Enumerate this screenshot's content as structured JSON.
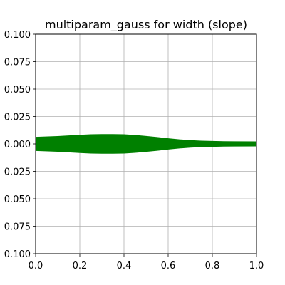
{
  "chart_data": {
    "type": "line",
    "title": "multiparam_gauss for width (slope)",
    "xlabel": "",
    "ylabel": "",
    "xlim": [
      0.0,
      1.0
    ],
    "ylim": [
      -0.1,
      0.1
    ],
    "xticks": [
      "0.0",
      "0.2",
      "0.4",
      "0.6",
      "0.8",
      "1.0"
    ],
    "yticks": [
      "0.100",
      "0.075",
      "0.050",
      "0.025",
      "0.000",
      "0.025",
      "0.050",
      "0.075",
      "0.100"
    ],
    "ytick_values": [
      0.1,
      0.075,
      0.05,
      0.025,
      0.0,
      -0.025,
      -0.05,
      -0.075,
      -0.1
    ],
    "grid": true,
    "legend": "none",
    "series_color": "#008000",
    "x": [
      0.0,
      0.1,
      0.2,
      0.25,
      0.3,
      0.35,
      0.4,
      0.45,
      0.5,
      0.55,
      0.6,
      0.65,
      0.7,
      0.75,
      0.8,
      0.85,
      0.9,
      1.0
    ],
    "series": [
      {
        "values": [
          0.0045,
          0.0052,
          0.0063,
          0.0068,
          0.007,
          0.007,
          0.0068,
          0.0062,
          0.0053,
          0.0043,
          0.0032,
          0.0022,
          0.0015,
          0.001,
          0.0007,
          0.0005,
          0.0004,
          0.0003
        ]
      },
      {
        "values": [
          -0.0045,
          -0.0052,
          -0.0063,
          -0.0068,
          -0.007,
          -0.007,
          -0.0068,
          -0.0062,
          -0.0053,
          -0.0043,
          -0.0032,
          -0.0022,
          -0.0015,
          -0.001,
          -0.0007,
          -0.0005,
          -0.0004,
          -0.0003
        ]
      },
      {
        "values": [
          0.0022,
          0.0025,
          0.003,
          0.0033,
          0.0035,
          0.0035,
          0.0034,
          0.0031,
          0.0026,
          0.0021,
          0.0016,
          0.0011,
          0.0008,
          0.0005,
          0.0004,
          0.0003,
          0.0002,
          0.0001
        ]
      },
      {
        "values": [
          -0.0022,
          -0.0025,
          -0.003,
          -0.0033,
          -0.0035,
          -0.0035,
          -0.0034,
          -0.0031,
          -0.0026,
          -0.0021,
          -0.0016,
          -0.0011,
          -0.0008,
          -0.0005,
          -0.0004,
          -0.0003,
          -0.0002,
          -0.0001
        ]
      },
      {
        "values": [
          0.0008,
          0.0009,
          0.001,
          0.0011,
          0.0011,
          0.0011,
          0.0011,
          0.001,
          0.0009,
          0.0007,
          0.0005,
          0.0004,
          0.0003,
          0.0002,
          0.0001,
          0.0001,
          0.0001,
          0.0
        ]
      },
      {
        "values": [
          -0.0008,
          -0.0009,
          -0.001,
          -0.0011,
          -0.0011,
          -0.0011,
          -0.0011,
          -0.001,
          -0.0009,
          -0.0007,
          -0.0005,
          -0.0004,
          -0.0003,
          -0.0002,
          -0.0001,
          -0.0001,
          -0.0001,
          0.0
        ]
      }
    ]
  }
}
